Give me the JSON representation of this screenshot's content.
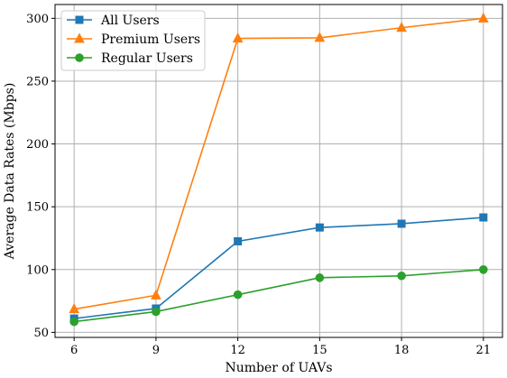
{
  "chart_data": {
    "type": "line",
    "x": [
      6,
      9,
      12,
      15,
      18,
      21
    ],
    "xticks": [
      "6",
      "9",
      "12",
      "15",
      "18",
      "21"
    ],
    "xlabel": "Number of UAVs",
    "ylabel": "Average Data Rates (Mbps)",
    "xlim": [
      5.3,
      21.7
    ],
    "ylim": [
      46,
      311
    ],
    "yticks": [
      "50",
      "100",
      "150",
      "200",
      "250",
      "300"
    ],
    "grid": true,
    "legend": "top-left",
    "series": [
      {
        "name": "All Users",
        "color": "#1f77b4",
        "marker": "square",
        "values": [
          61,
          69,
          122.5,
          133.5,
          136.5,
          141.5
        ]
      },
      {
        "name": "Premium Users",
        "color": "#ff7f0e",
        "marker": "triangle",
        "values": [
          68.5,
          79.5,
          284,
          284.5,
          292.5,
          300
        ]
      },
      {
        "name": "Regular Users",
        "color": "#2ca02c",
        "marker": "circle",
        "values": [
          58.5,
          66.5,
          80,
          93.5,
          95,
          100
        ]
      }
    ]
  }
}
